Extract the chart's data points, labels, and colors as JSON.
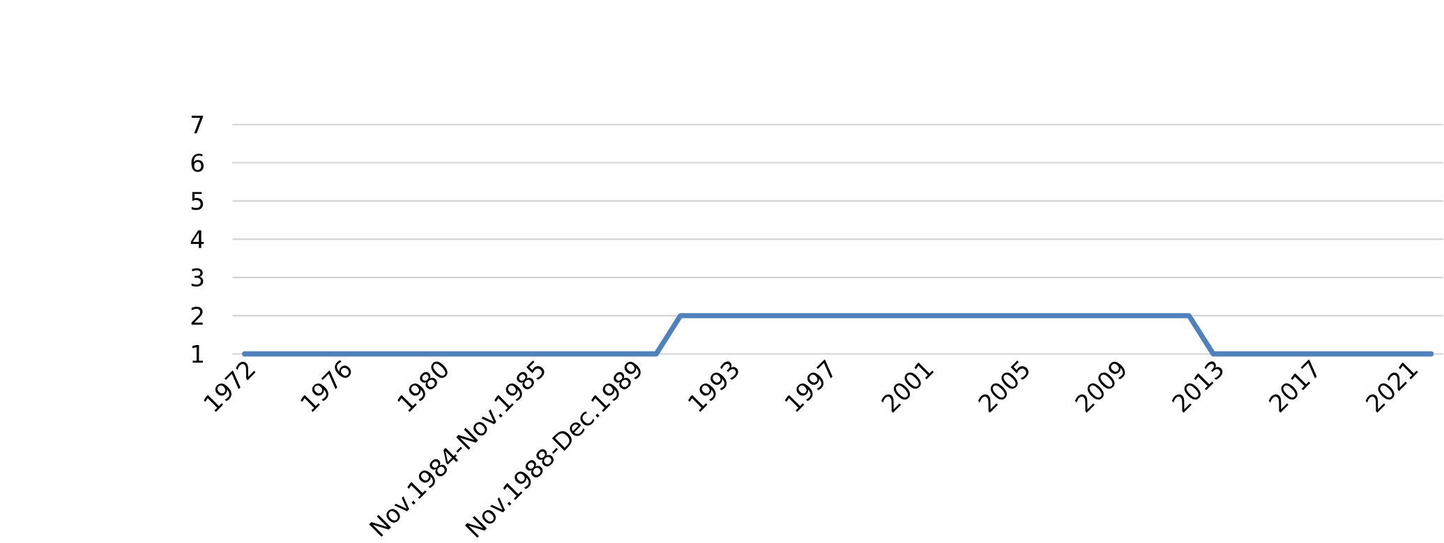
{
  "chart_data": {
    "type": "line",
    "categories": [
      "1972",
      null,
      null,
      null,
      "1976",
      null,
      null,
      null,
      "1980",
      null,
      null,
      null,
      "Nov.1984-Nov.1985",
      null,
      null,
      null,
      "Nov.1988-Dec.1989",
      null,
      null,
      null,
      "1993",
      null,
      null,
      null,
      "1997",
      null,
      null,
      null,
      "2001",
      null,
      null,
      null,
      "2005",
      null,
      null,
      null,
      "2009",
      null,
      null,
      null,
      "2013",
      null,
      null,
      null,
      "2017",
      null,
      null,
      null,
      "2021",
      null
    ],
    "series": [
      {
        "color": "#4f81bd",
        "values": [
          1,
          1,
          1,
          1,
          1,
          1,
          1,
          1,
          1,
          1,
          1,
          1,
          1,
          1,
          1,
          1,
          1,
          1,
          2,
          2,
          2,
          2,
          2,
          2,
          2,
          2,
          2,
          2,
          2,
          2,
          2,
          2,
          2,
          2,
          2,
          2,
          2,
          2,
          2,
          2,
          1,
          1,
          1,
          1,
          1,
          1,
          1,
          1,
          1,
          1
        ]
      }
    ],
    "ylim": [
      1,
      7
    ],
    "yticks": [
      1,
      2,
      3,
      4,
      5,
      6,
      7
    ],
    "grid": "y",
    "line_style": "solid",
    "marker": "none"
  }
}
